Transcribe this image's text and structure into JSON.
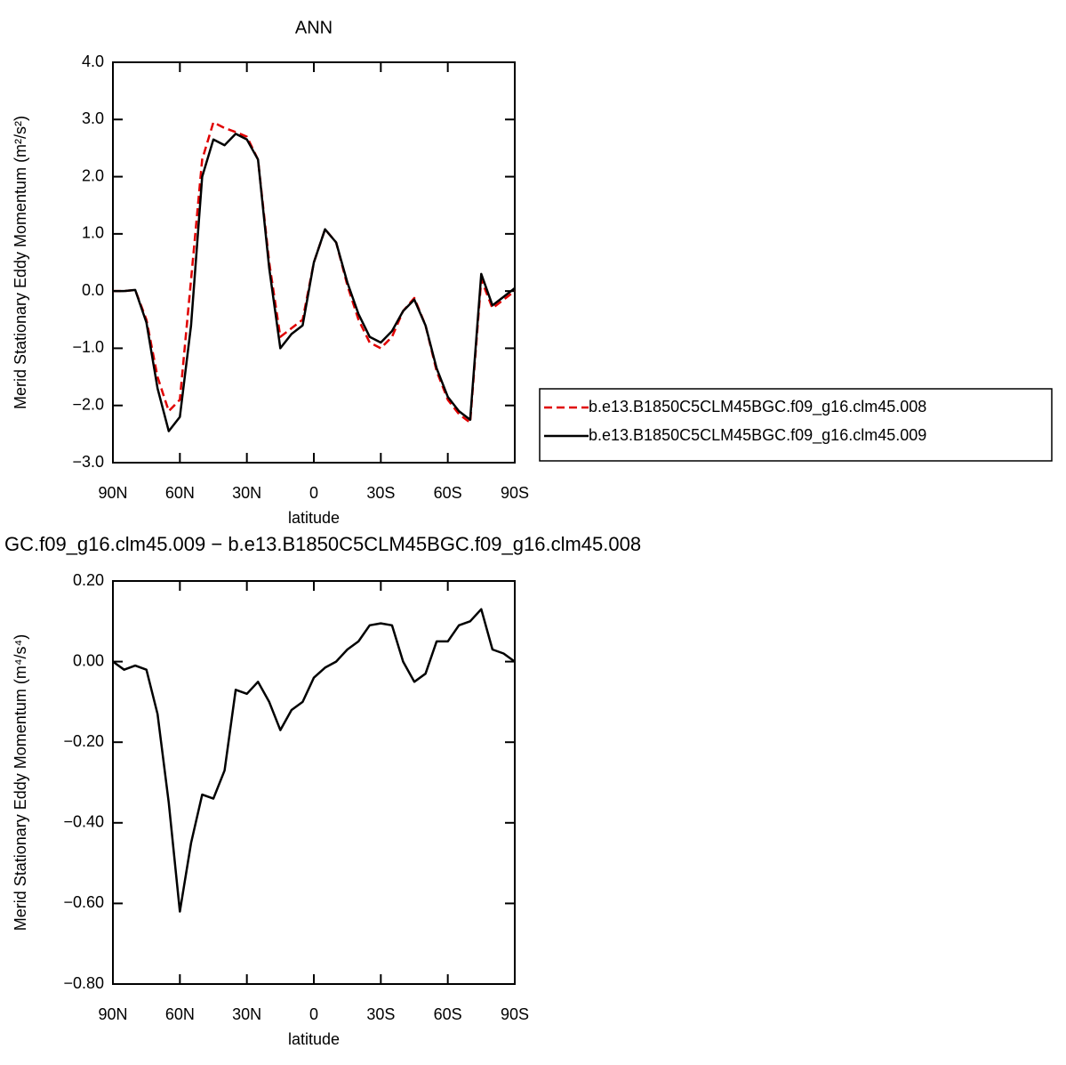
{
  "chart_data": [
    {
      "type": "line",
      "title": "ANN",
      "x": [
        90,
        85,
        80,
        75,
        70,
        65,
        60,
        55,
        50,
        45,
        40,
        35,
        30,
        25,
        20,
        15,
        10,
        5,
        0,
        -5,
        -10,
        -15,
        -20,
        -25,
        -30,
        -35,
        -40,
        -45,
        -50,
        -55,
        -60,
        -65,
        -70,
        -75,
        -80,
        -85,
        -90
      ],
      "series": [
        {
          "name": "b.e13.B1850C5CLM45BGC.f09_g16.clm45.008",
          "color": "#e00000",
          "linestyle": "dashed",
          "values": [
            0,
            0,
            0.02,
            -0.5,
            -1.5,
            -2.1,
            -1.9,
            0.2,
            2.3,
            2.95,
            2.85,
            2.78,
            2.7,
            2.3,
            0.5,
            -0.8,
            -0.65,
            -0.5,
            0.5,
            1.08,
            0.85,
            0.1,
            -0.5,
            -0.9,
            -1.0,
            -0.8,
            -0.35,
            -0.12,
            -0.6,
            -1.4,
            -1.9,
            -2.15,
            -2.3,
            0.2,
            -0.3,
            -0.15,
            0
          ]
        },
        {
          "name": "b.e13.B1850C5CLM45BGC.f09_g16.clm45.009",
          "color": "#000000",
          "linestyle": "solid",
          "values": [
            0,
            0,
            0.02,
            -0.55,
            -1.7,
            -2.45,
            -2.2,
            -0.6,
            2.0,
            2.65,
            2.55,
            2.75,
            2.65,
            2.3,
            0.4,
            -1.0,
            -0.75,
            -0.6,
            0.5,
            1.08,
            0.85,
            0.15,
            -0.4,
            -0.8,
            -0.9,
            -0.7,
            -0.35,
            -0.15,
            -0.6,
            -1.35,
            -1.85,
            -2.1,
            -2.25,
            0.3,
            -0.25,
            -0.1,
            0.05
          ]
        }
      ],
      "xlim": [
        90,
        -90
      ],
      "xticks": [
        {
          "value": 90,
          "label": "90N"
        },
        {
          "value": 60,
          "label": "60N"
        },
        {
          "value": 30,
          "label": "30N"
        },
        0,
        {
          "value": -30,
          "label": "30S"
        },
        {
          "value": -60,
          "label": "60S"
        },
        {
          "value": -90,
          "label": "90S"
        }
      ],
      "ylim": [
        -3,
        4
      ],
      "yticks": [
        {
          "value": -3,
          "label": "−3.0"
        },
        {
          "value": -2,
          "label": "−2.0"
        },
        {
          "value": -1,
          "label": "−1.0"
        },
        {
          "value": 0,
          "label": "0.0"
        },
        {
          "value": 1,
          "label": "1.0"
        },
        {
          "value": 2,
          "label": "2.0"
        },
        {
          "value": 3,
          "label": "3.0"
        },
        {
          "value": 4,
          "label": "4.0"
        }
      ],
      "xlabel": "latitude",
      "ylabel": "Merid Stationary Eddy Momentum (m²/s²)",
      "legend": "right"
    },
    {
      "type": "line",
      "title": "GC.f09_g16.clm45.009 − b.e13.B1850C5CLM45BGC.f09_g16.clm45.008",
      "x": [
        90,
        85,
        80,
        75,
        70,
        65,
        60,
        55,
        50,
        45,
        40,
        35,
        30,
        25,
        20,
        15,
        10,
        5,
        0,
        -5,
        -10,
        -15,
        -20,
        -25,
        -30,
        -35,
        -40,
        -45,
        -50,
        -55,
        -60,
        -65,
        -70,
        -75,
        -80,
        -85,
        -90
      ],
      "series": [
        {
          "color": "#000000",
          "linestyle": "solid",
          "values": [
            0,
            -0.02,
            -0.01,
            -0.02,
            -0.13,
            -0.35,
            -0.62,
            -0.45,
            -0.33,
            -0.34,
            -0.27,
            -0.07,
            -0.08,
            -0.05,
            -0.1,
            -0.17,
            -0.12,
            -0.1,
            -0.04,
            -0.015,
            0,
            0.03,
            0.05,
            0.09,
            0.095,
            0.09,
            0,
            -0.05,
            -0.03,
            0.05,
            0.05,
            0.09,
            0.1,
            0.13,
            0.03,
            0.02,
            0
          ]
        }
      ],
      "xlim": [
        90,
        -90
      ],
      "xticks": [
        {
          "value": 90,
          "label": "90N"
        },
        {
          "value": 60,
          "label": "60N"
        },
        {
          "value": 30,
          "label": "30N"
        },
        0,
        {
          "value": -30,
          "label": "30S"
        },
        {
          "value": -60,
          "label": "60S"
        },
        {
          "value": -90,
          "label": "90S"
        }
      ],
      "ylim": [
        -0.8,
        0.2
      ],
      "yticks": [
        {
          "value": -0.8,
          "label": "−0.80"
        },
        {
          "value": -0.6,
          "label": "−0.60"
        },
        {
          "value": -0.4,
          "label": "−0.40"
        },
        {
          "value": -0.2,
          "label": "−0.20"
        },
        {
          "value": 0,
          "label": "0.00"
        },
        {
          "value": 0.2,
          "label": "0.20"
        }
      ],
      "xlabel": "latitude",
      "ylabel": "Merid Stationary Eddy Momentum (m⁴/s⁴)"
    }
  ]
}
